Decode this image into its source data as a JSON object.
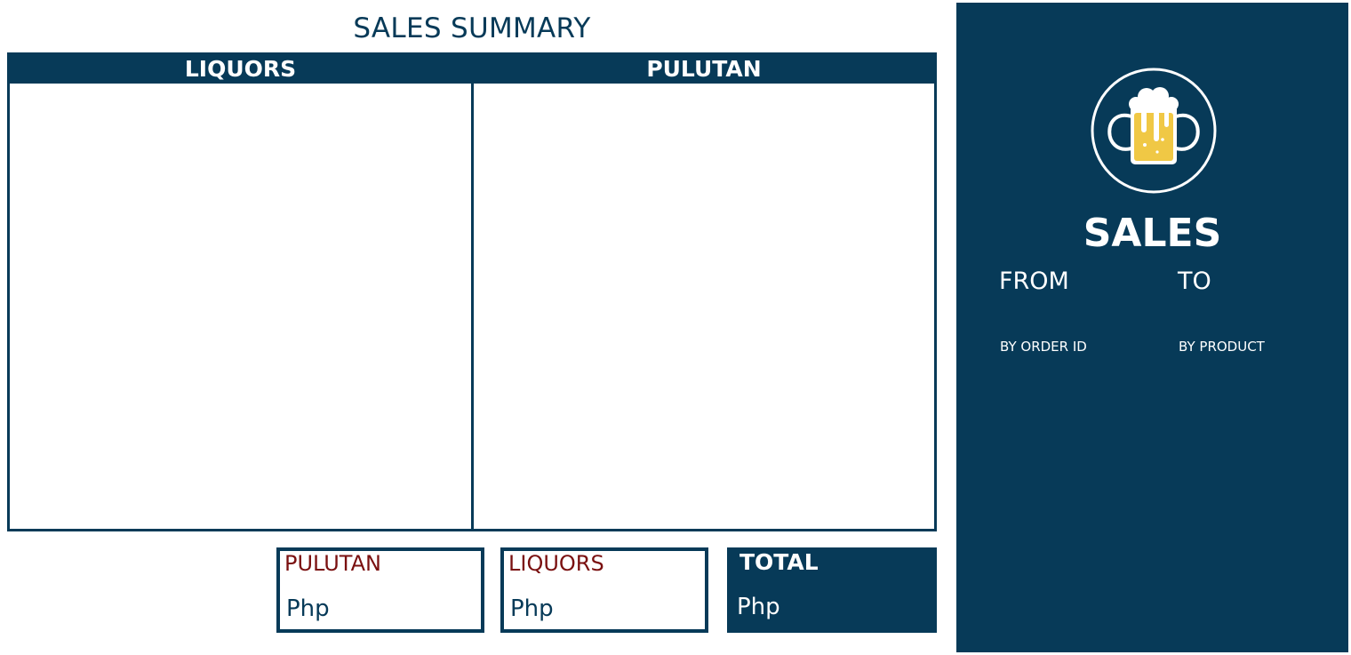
{
  "page": {
    "title": "SALES SUMMARY"
  },
  "panels": {
    "liquors": {
      "header": "LIQUORS"
    },
    "pulutan": {
      "header": "PULUTAN"
    }
  },
  "summary": {
    "pulutan": {
      "label": "PULUTAN",
      "amount": "Php"
    },
    "liquors": {
      "label": "LIQUORS",
      "amount": "Php"
    },
    "total": {
      "label": "TOTAL",
      "amount": "Php"
    }
  },
  "sidebar": {
    "logo_icon": "beer-mug-icon",
    "heading": "SALES",
    "from_label": "FROM",
    "to_label": "TO",
    "by_order_id": "BY ORDER ID",
    "by_product": "BY PRODUCT"
  },
  "colors": {
    "primary": "#073a58",
    "accent_text": "#7a1010",
    "beer": "#f0c845",
    "white": "#ffffff"
  }
}
